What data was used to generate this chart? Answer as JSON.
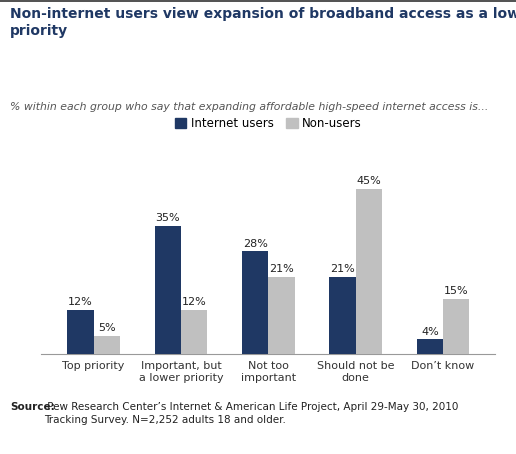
{
  "title": "Non-internet users view expansion of broadband access as a low\npriority",
  "subtitle": "% within each group who say that expanding affordable high-speed internet access is...",
  "categories": [
    "Top priority",
    "Important, but\na lower priority",
    "Not too\nimportant",
    "Should not be\ndone",
    "Don’t know"
  ],
  "internet_users": [
    12,
    35,
    28,
    21,
    4
  ],
  "non_users": [
    5,
    12,
    21,
    45,
    15
  ],
  "bar_color_internet": "#1f3864",
  "bar_color_nonusers": "#c0c0c0",
  "legend_labels": [
    "Internet users",
    "Non-users"
  ],
  "source_bold": "Source:",
  "source_text": " Pew Research Center’s Internet & American Life Project, April 29-May 30, 2010\nTracking Survey. N=2,252 adults 18 and older.",
  "ylim": [
    0,
    52
  ],
  "bar_width": 0.3,
  "title_color": "#1f3864",
  "subtitle_color": "#555555"
}
